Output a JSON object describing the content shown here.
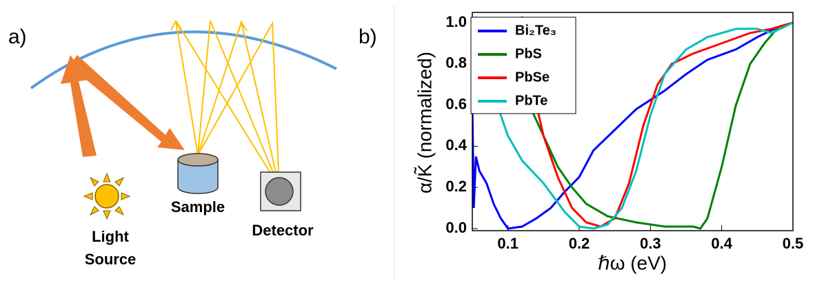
{
  "diagram": {
    "panel_label": "a)",
    "light_source": [
      "Light",
      "Source"
    ],
    "sample": "Sample",
    "detector": "Detector"
  },
  "chart_data": {
    "type": "line",
    "panel_label": "b)",
    "x_label": "ℏω (eV)",
    "y_label": "α/K̃ (normalized)",
    "xlim": [
      0.05,
      0.5
    ],
    "ylim": [
      -0.01,
      1.05
    ],
    "xticks": [
      0.1,
      0.2,
      0.3,
      0.4,
      0.5
    ],
    "yticks": [
      {
        "value": 0,
        "label": "0.0"
      },
      0.2,
      0.4,
      0.6,
      0.8,
      {
        "value": 1,
        "label": "1.0"
      }
    ],
    "legend": "upper left",
    "series": [
      {
        "name": "Bi₂Te₃",
        "color": "#0000ff",
        "x": [
          0.05,
          0.052,
          0.055,
          0.06,
          0.07,
          0.08,
          0.09,
          0.1,
          0.12,
          0.14,
          0.16,
          0.18,
          0.2,
          0.22,
          0.25,
          0.28,
          0.32,
          0.35,
          0.38,
          0.42,
          0.45,
          0.48,
          0.5
        ],
        "values": [
          0.6,
          0.1,
          0.35,
          0.28,
          0.22,
          0.12,
          0.05,
          0.0,
          0.01,
          0.05,
          0.1,
          0.18,
          0.25,
          0.38,
          0.48,
          0.58,
          0.67,
          0.75,
          0.82,
          0.87,
          0.93,
          0.98,
          1.0
        ]
      },
      {
        "name": "PbS",
        "color": "#008000",
        "x": [
          0.12,
          0.13,
          0.15,
          0.17,
          0.19,
          0.21,
          0.24,
          0.28,
          0.32,
          0.36,
          0.37,
          0.38,
          0.4,
          0.42,
          0.44,
          0.46,
          0.48,
          0.5
        ],
        "values": [
          1.03,
          0.6,
          0.45,
          0.3,
          0.2,
          0.12,
          0.06,
          0.03,
          0.01,
          0.01,
          0.0,
          0.05,
          0.3,
          0.6,
          0.8,
          0.9,
          0.98,
          1.0
        ]
      },
      {
        "name": "PbSe",
        "color": "#ff0000",
        "x": [
          0.12,
          0.13,
          0.15,
          0.17,
          0.19,
          0.21,
          0.23,
          0.25,
          0.27,
          0.29,
          0.31,
          0.33,
          0.36,
          0.4,
          0.44,
          0.47,
          0.5
        ],
        "values": [
          1.03,
          0.75,
          0.45,
          0.25,
          0.1,
          0.03,
          0.01,
          0.05,
          0.22,
          0.5,
          0.7,
          0.8,
          0.85,
          0.9,
          0.95,
          0.97,
          1.0
        ]
      },
      {
        "name": "PbTe",
        "color": "#00bfbf",
        "x": [
          0.055,
          0.06,
          0.08,
          0.1,
          0.12,
          0.15,
          0.18,
          0.2,
          0.22,
          0.24,
          0.26,
          0.28,
          0.3,
          0.32,
          0.35,
          0.38,
          0.42,
          0.45,
          0.47,
          0.5
        ],
        "values": [
          1.03,
          0.85,
          0.65,
          0.45,
          0.33,
          0.22,
          0.08,
          0.01,
          0.0,
          0.02,
          0.1,
          0.28,
          0.55,
          0.75,
          0.87,
          0.93,
          0.97,
          0.97,
          0.95,
          1.0
        ]
      }
    ]
  }
}
